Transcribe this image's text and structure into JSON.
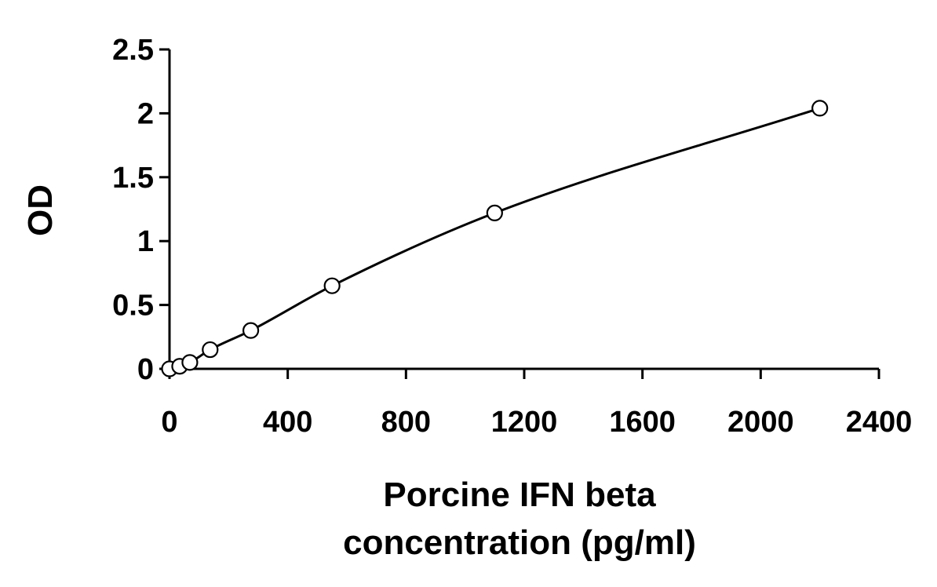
{
  "chart_data": {
    "type": "scatter",
    "title": "",
    "xlabel_lines": [
      "Porcine IFN beta",
      "concentration (pg/ml)"
    ],
    "ylabel": "OD",
    "xlim": [
      0,
      2400
    ],
    "ylim": [
      0,
      2.5
    ],
    "x_ticks": [
      0,
      400,
      800,
      1200,
      1600,
      2000,
      2400
    ],
    "x_tick_labels": [
      "0",
      "400",
      "800",
      "1200",
      "1600",
      "2000",
      "2400"
    ],
    "y_ticks": [
      0,
      0.5,
      1,
      1.5,
      2,
      2.5
    ],
    "y_tick_labels": [
      "0",
      "0.5",
      "1",
      "1.5",
      "2",
      "2.5"
    ],
    "grid": false,
    "legend": "none",
    "series": [
      {
        "marker": "open-circle",
        "fit_line": "smooth-curve",
        "color": "#000000",
        "points": [
          {
            "x": 0,
            "y": 0.0
          },
          {
            "x": 34.4,
            "y": 0.02
          },
          {
            "x": 68.8,
            "y": 0.05
          },
          {
            "x": 137.5,
            "y": 0.15
          },
          {
            "x": 275,
            "y": 0.3
          },
          {
            "x": 550,
            "y": 0.65
          },
          {
            "x": 1100,
            "y": 1.22
          },
          {
            "x": 2200,
            "y": 2.04
          }
        ]
      }
    ]
  }
}
